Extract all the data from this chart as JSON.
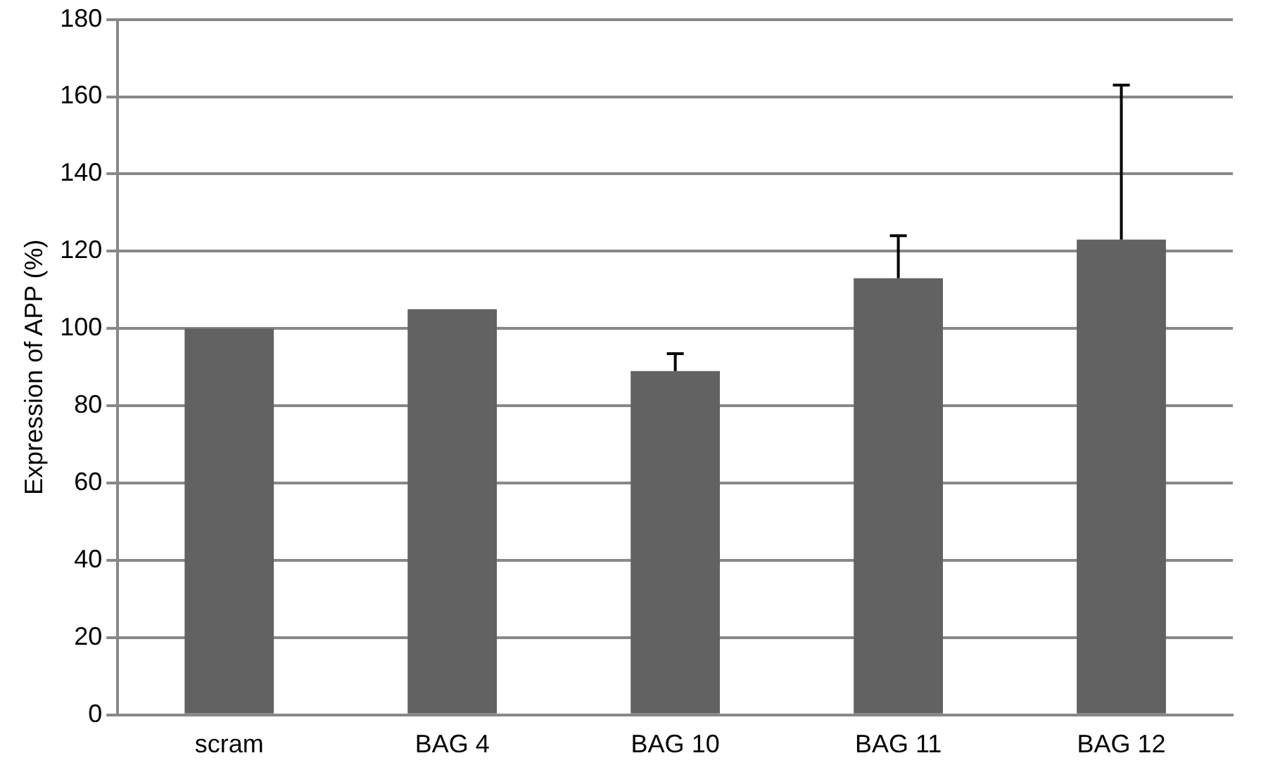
{
  "chart_data": {
    "type": "bar",
    "ylabel": "Expression of APP (%)",
    "categories": [
      "scram",
      "BAG 4",
      "BAG 10",
      "BAG 11",
      "BAG 12"
    ],
    "values": [
      100,
      105,
      89,
      113,
      123
    ],
    "errors": [
      null,
      null,
      [
        89,
        93.5
      ],
      [
        113,
        124
      ],
      [
        123,
        163
      ]
    ],
    "color": "#626262",
    "ylim": [
      0,
      180
    ],
    "yticks": [
      0,
      20,
      40,
      60,
      80,
      100,
      120,
      140,
      160,
      180
    ],
    "grid": "y",
    "legend": false
  }
}
